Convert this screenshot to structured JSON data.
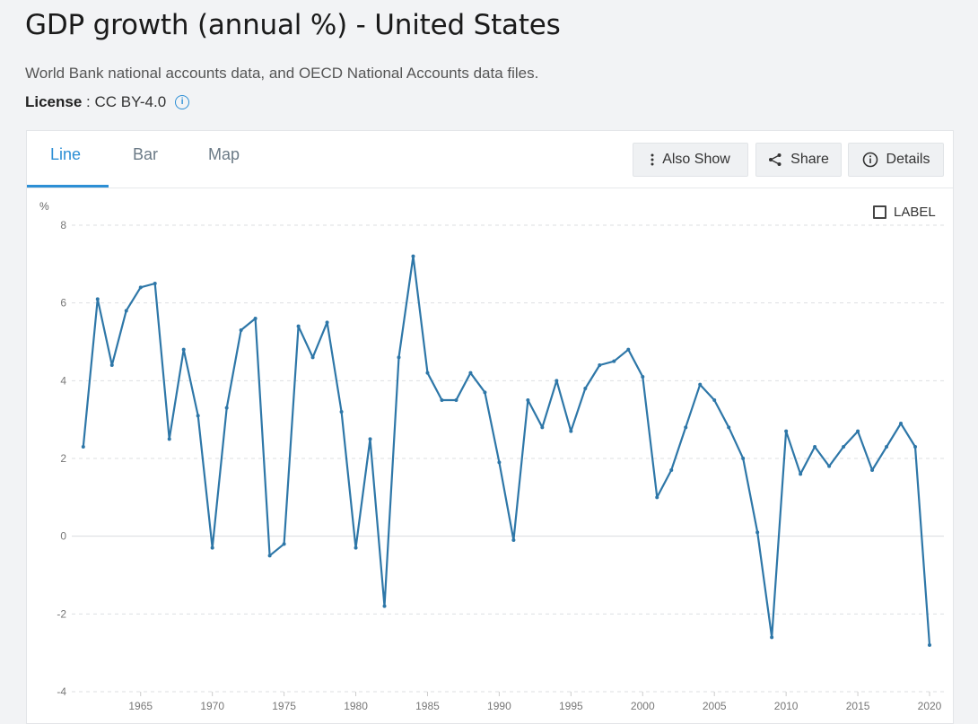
{
  "header": {
    "title": "GDP growth (annual %) - United States",
    "source": "World Bank national accounts data, and OECD National Accounts data files.",
    "license_label": "License",
    "license_sep": " : ",
    "license_value": "CC BY-4.0"
  },
  "tabs": [
    {
      "label": "Line",
      "active": true
    },
    {
      "label": "Bar",
      "active": false
    },
    {
      "label": "Map",
      "active": false
    }
  ],
  "toolbar": {
    "also_show": "Also Show",
    "share": "Share",
    "details": "Details"
  },
  "label_toggle": {
    "label": "LABEL",
    "checked": false
  },
  "colors": {
    "line": "#2e77a8",
    "accent": "#2d8fd5"
  },
  "chart_data": {
    "type": "line",
    "ylabel": "%",
    "ylim": [
      -4,
      8
    ],
    "yticks": [
      -4,
      -2,
      0,
      2,
      4,
      6,
      8
    ],
    "xlim": [
      1960,
      2021
    ],
    "xticks": [
      1965,
      1970,
      1975,
      1980,
      1985,
      1990,
      1995,
      2000,
      2005,
      2010,
      2015,
      2020
    ],
    "grid": true,
    "series": [
      {
        "x": [
          1961,
          1962,
          1963,
          1964,
          1965,
          1966,
          1967,
          1968,
          1969,
          1970,
          1971,
          1972,
          1973,
          1974,
          1975,
          1976,
          1977,
          1978,
          1979,
          1980,
          1981,
          1982,
          1983,
          1984,
          1985,
          1986,
          1987,
          1988,
          1989,
          1990,
          1991,
          1992,
          1993,
          1994,
          1995,
          1996,
          1997,
          1998,
          1999,
          2000,
          2001,
          2002,
          2003,
          2004,
          2005,
          2006,
          2007,
          2008,
          2009,
          2010,
          2011,
          2012,
          2013,
          2014,
          2015,
          2016,
          2017,
          2018,
          2019,
          2020
        ],
        "values": [
          2.3,
          6.1,
          4.4,
          5.8,
          6.4,
          6.5,
          2.5,
          4.8,
          3.1,
          -0.3,
          3.3,
          5.3,
          5.6,
          -0.5,
          -0.2,
          5.4,
          4.6,
          5.5,
          3.2,
          -0.3,
          2.5,
          -1.8,
          4.6,
          7.2,
          4.2,
          3.5,
          3.5,
          4.2,
          3.7,
          1.9,
          -0.1,
          3.5,
          2.8,
          4.0,
          2.7,
          3.8,
          4.4,
          4.5,
          4.8,
          4.1,
          1.0,
          1.7,
          2.8,
          3.9,
          3.5,
          2.8,
          2.0,
          0.1,
          -2.6,
          2.7,
          1.6,
          2.3,
          1.8,
          2.3,
          2.7,
          1.7,
          2.3,
          2.9,
          2.3,
          -2.8
        ]
      }
    ]
  }
}
